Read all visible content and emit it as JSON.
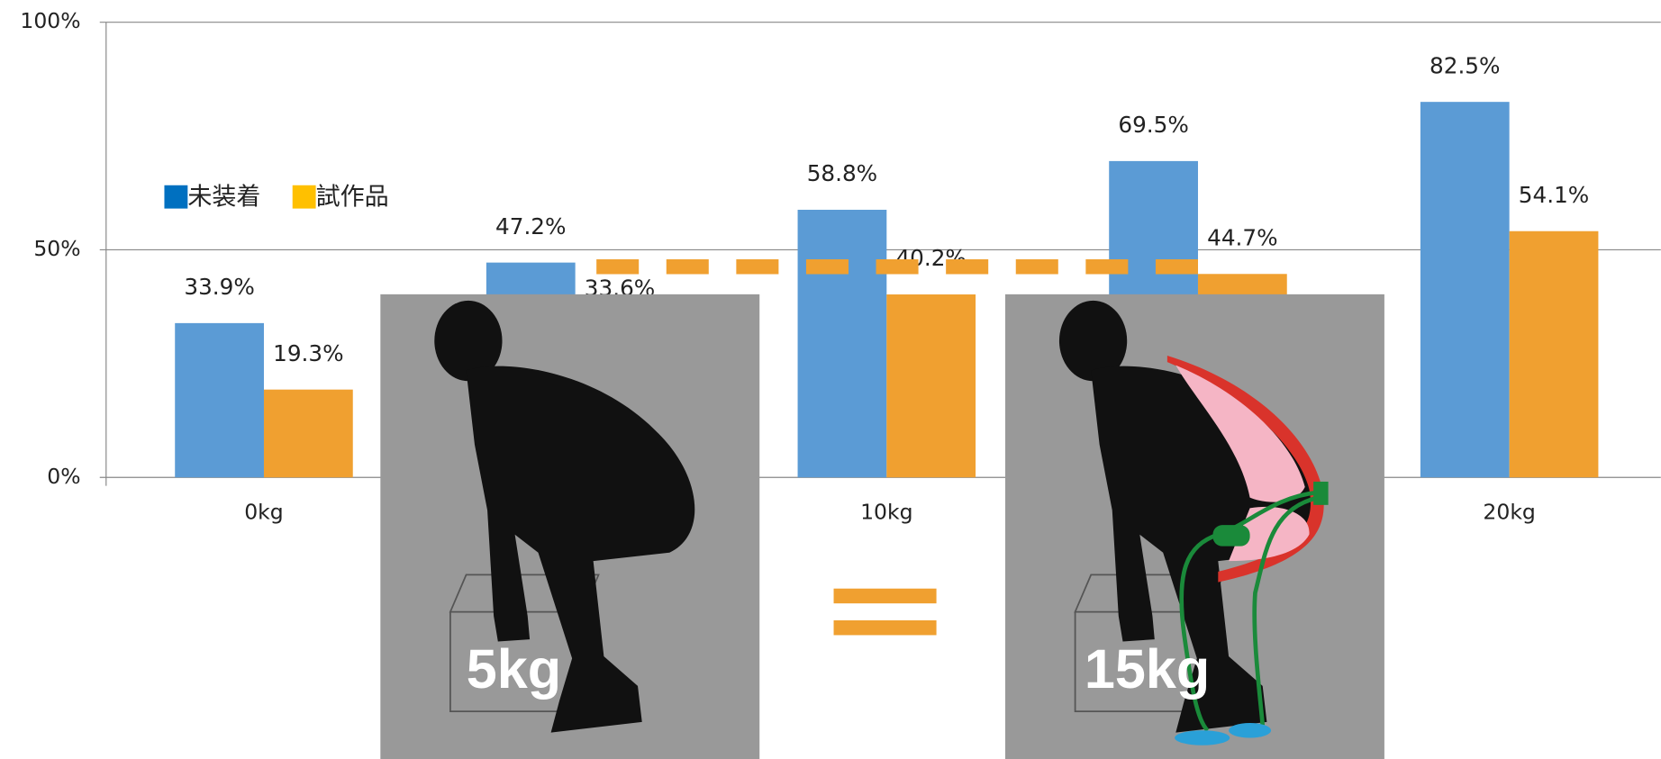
{
  "chart_data": {
    "type": "bar",
    "categories": [
      "0kg",
      null,
      "10kg",
      null,
      "20kg"
    ],
    "series": [
      {
        "name": "未装着",
        "color": "#5b9bd5",
        "legend_color": "#0070c0",
        "values": [
          33.9,
          47.2,
          58.8,
          69.5,
          82.5
        ],
        "value_labels": [
          "33.9%",
          "47.2%",
          "58.8%",
          "69.5%",
          "82.5%"
        ]
      },
      {
        "name": "試作品",
        "color": "#f0a030",
        "legend_color": "#ffc000",
        "values": [
          19.3,
          33.6,
          40.2,
          44.7,
          54.1
        ],
        "value_labels": [
          "19.3%",
          "33.6%",
          "40.2%",
          "44.7%",
          "54.1%"
        ]
      }
    ],
    "ylim": [
      0,
      100
    ],
    "yticks": [
      {
        "value": 0,
        "label": "0%"
      },
      {
        "value": 50,
        "label": "50%"
      },
      {
        "value": 100,
        "label": "100%"
      }
    ],
    "grid": true,
    "legend": "upper left",
    "annotations": [
      "5kg",
      "15kg"
    ]
  }
}
